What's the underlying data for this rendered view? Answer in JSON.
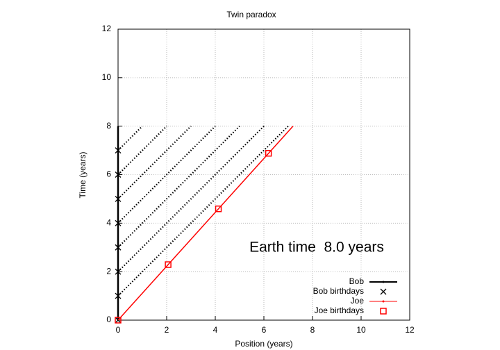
{
  "chart_data": {
    "type": "line",
    "title": "Twin paradox",
    "xlabel": "Position (years)",
    "ylabel": "Time (years)",
    "xlim": [
      0,
      12
    ],
    "ylim": [
      0,
      12
    ],
    "xticks": [
      0,
      2,
      4,
      6,
      8,
      10,
      12
    ],
    "yticks": [
      0,
      2,
      4,
      6,
      8,
      10,
      12
    ],
    "grid": true,
    "annotation": "Earth time  8.0 years",
    "series": [
      {
        "name": "Bob",
        "color": "#000000",
        "marker": "dot",
        "x": [
          0,
          0
        ],
        "y": [
          0,
          8
        ]
      },
      {
        "name": "Bob birthdays",
        "color": "#000000",
        "marker": "x",
        "x": [
          0,
          0,
          0,
          0,
          0,
          0,
          0,
          0
        ],
        "y": [
          0,
          1,
          2,
          3,
          4,
          5,
          6,
          7
        ]
      },
      {
        "name": "Joe",
        "color": "#ff0000",
        "marker": "dot",
        "x": [
          0,
          7.2
        ],
        "y": [
          0,
          8
        ]
      },
      {
        "name": "Joe birthdays",
        "color": "#ff0000",
        "marker": "square",
        "x": [
          0,
          2.06,
          4.13,
          6.19
        ],
        "y": [
          0,
          2.29,
          4.59,
          6.88
        ]
      }
    ],
    "light_signals": [
      {
        "x": [
          0,
          7
        ],
        "y": [
          1,
          8
        ]
      },
      {
        "x": [
          0,
          6
        ],
        "y": [
          2,
          8
        ]
      },
      {
        "x": [
          0,
          5
        ],
        "y": [
          3,
          8
        ]
      },
      {
        "x": [
          0,
          4
        ],
        "y": [
          4,
          8
        ]
      },
      {
        "x": [
          0,
          3
        ],
        "y": [
          5,
          8
        ]
      },
      {
        "x": [
          0,
          2
        ],
        "y": [
          6,
          8
        ]
      },
      {
        "x": [
          0,
          1
        ],
        "y": [
          7,
          8
        ]
      }
    ]
  }
}
